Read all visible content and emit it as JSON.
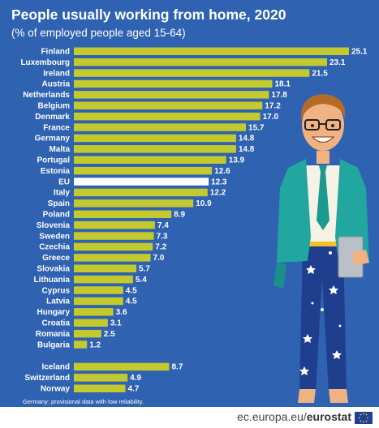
{
  "title": "People usually working from home, 2020",
  "subtitle": "(% of employed people aged 15-64)",
  "footnote": "Germany: provisional data with low reliability.",
  "source": {
    "domain": "ec.europa.eu/",
    "brand": "eurostat"
  },
  "colors": {
    "background": "#2f62b0",
    "bar": "#c4c92d",
    "eu_bar": "#ffffff",
    "text": "#ffffff"
  },
  "chart_data": {
    "type": "bar",
    "orientation": "horizontal",
    "categories": [
      "Finland",
      "Luxembourg",
      "Ireland",
      "Austria",
      "Netherlands",
      "Belgium",
      "Denmark",
      "France",
      "Germany",
      "Malta",
      "Portugal",
      "Estonia",
      "EU",
      "Italy",
      "Spain",
      "Poland",
      "Slovenia",
      "Sweden",
      "Czechia",
      "Greece",
      "Slovakia",
      "Lithuania",
      "Cyprus",
      "Latvia",
      "Hungary",
      "Croatia",
      "Romania",
      "Bulgaria",
      "Iceland",
      "Switzerland",
      "Norway"
    ],
    "values": [
      25.1,
      23.1,
      21.5,
      18.1,
      17.8,
      17.2,
      17.0,
      15.7,
      14.8,
      14.8,
      13.9,
      12.6,
      12.3,
      12.2,
      10.9,
      8.9,
      7.4,
      7.3,
      7.2,
      7.0,
      5.7,
      5.4,
      4.5,
      4.5,
      3.6,
      3.1,
      2.5,
      1.2,
      8.7,
      4.9,
      4.7
    ],
    "value_labels": [
      "25.1",
      "23.1",
      "21.5",
      "18.1",
      "17.8",
      "17.2",
      "17.0",
      "15.7",
      "14.8",
      "14.8",
      "13.9",
      "12.6",
      "12.3",
      "12.2",
      "10.9",
      "8.9",
      "7.4",
      "7.3",
      "7.2",
      "7.0",
      "5.7",
      "5.4",
      "4.5",
      "4.5",
      "3.6",
      "3.1",
      "2.5",
      "1.2",
      "8.7",
      "4.9",
      "4.7"
    ],
    "highlight": "EU",
    "groups": [
      {
        "start": 0,
        "end": 27
      },
      {
        "start": 28,
        "end": 30
      }
    ],
    "xlim": [
      0,
      25.1
    ]
  }
}
